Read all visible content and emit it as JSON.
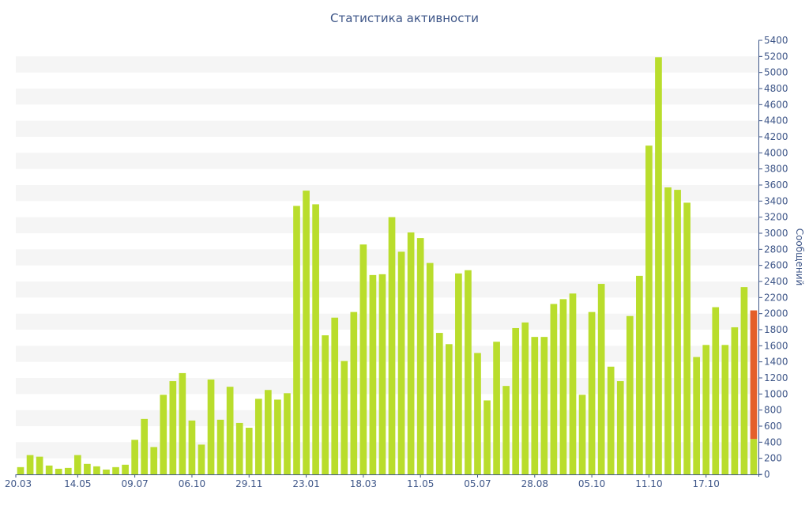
{
  "chart_data": {
    "type": "bar",
    "title": "Статистика активности",
    "ylabel": "Сообщений",
    "xlabel": "",
    "ylim": [
      0,
      5400
    ],
    "ytick_step": 200,
    "x_tick_labels": [
      {
        "index": 0,
        "label": "20.03"
      },
      {
        "index": 6,
        "label": "14.05"
      },
      {
        "index": 12,
        "label": "09.07"
      },
      {
        "index": 18,
        "label": "06.10"
      },
      {
        "index": 24,
        "label": "29.11"
      },
      {
        "index": 30,
        "label": "23.01"
      },
      {
        "index": 36,
        "label": "18.03"
      },
      {
        "index": 42,
        "label": "11.05"
      },
      {
        "index": 48,
        "label": "05.07"
      },
      {
        "index": 54,
        "label": "28.08"
      },
      {
        "index": 60,
        "label": "05.10"
      },
      {
        "index": 66,
        "label": "11.10"
      },
      {
        "index": 72,
        "label": "17.10"
      }
    ],
    "series": [
      {
        "color": "#b9dd2c",
        "values": [
          90,
          240,
          220,
          110,
          70,
          80,
          240,
          130,
          100,
          60,
          90,
          120,
          430,
          690,
          340,
          990,
          1160,
          1260,
          670,
          370,
          1180,
          680,
          1090,
          640,
          580,
          940,
          1050,
          930,
          1010,
          3340,
          3530,
          3360,
          1730,
          1950,
          1410,
          2020,
          2860,
          2480,
          2490,
          3200,
          2770,
          3010,
          2940,
          2630,
          1760,
          1620,
          2500,
          2540,
          1510,
          920,
          1650,
          1100,
          1820,
          1890,
          1710,
          1710,
          2120,
          2180,
          2250,
          990,
          2020,
          2370,
          1340,
          1160,
          1970,
          2470,
          4090,
          5190,
          3570,
          3540,
          3380,
          1460,
          1610,
          2080,
          1610,
          1830,
          2330,
          440
        ]
      },
      {
        "color": "#e45f2a",
        "stacked_on_last": true,
        "values": [
          1600
        ]
      }
    ],
    "grid": "horizontal-bands",
    "legend": "none"
  }
}
